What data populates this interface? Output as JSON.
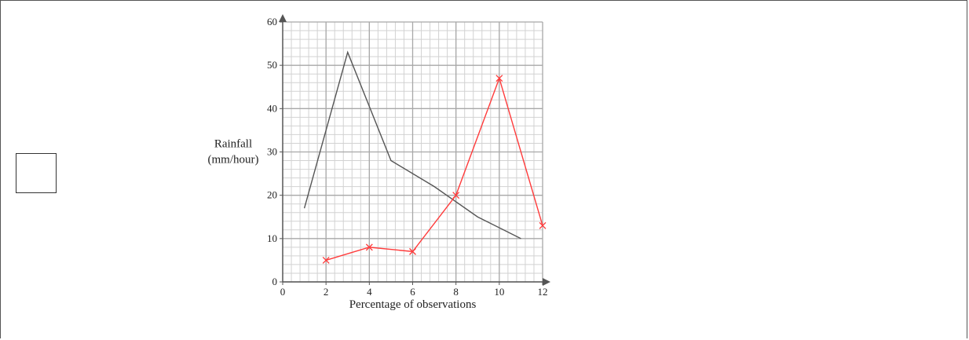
{
  "answer_box": {
    "value": ""
  },
  "chart_data": {
    "type": "line",
    "title": "",
    "xlabel": "Percentage of observations",
    "ylabel_lines": [
      "Rainfall",
      "(mm/hour)"
    ],
    "xlim": [
      0,
      12
    ],
    "ylim": [
      0,
      60
    ],
    "x_ticks": [
      0,
      2,
      4,
      6,
      8,
      10,
      12
    ],
    "y_ticks": [
      0,
      10,
      20,
      30,
      40,
      50,
      60
    ],
    "grid": true,
    "series": [
      {
        "color": "#555555",
        "marker": "none",
        "points": [
          {
            "x": 1,
            "y": 17
          },
          {
            "x": 3,
            "y": 53
          },
          {
            "x": 5,
            "y": 28
          },
          {
            "x": 7,
            "y": 22
          },
          {
            "x": 9,
            "y": 15
          },
          {
            "x": 11,
            "y": 10
          }
        ]
      },
      {
        "color": "#ff3b3b",
        "marker": "cross",
        "points": [
          {
            "x": 2,
            "y": 5
          },
          {
            "x": 4,
            "y": 8
          },
          {
            "x": 6,
            "y": 7
          },
          {
            "x": 8,
            "y": 20
          },
          {
            "x": 10,
            "y": 47
          },
          {
            "x": 12,
            "y": 13
          }
        ]
      }
    ]
  }
}
